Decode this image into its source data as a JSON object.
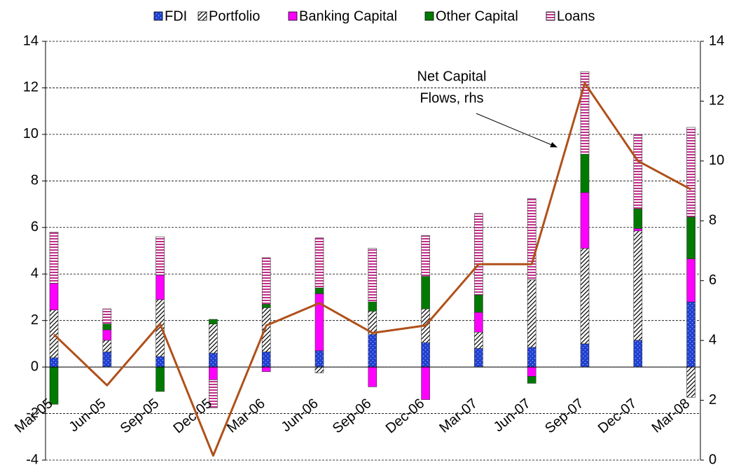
{
  "chart_data": {
    "type": "bar",
    "stacked": true,
    "categories": [
      "Mar-05",
      "Jun-05",
      "Sep-05",
      "Dec-05",
      "Mar-06",
      "Jun-06",
      "Sep-06",
      "Dec-06",
      "Mar-07",
      "Jun-07",
      "Sep-07",
      "Dec-07",
      "Mar-08"
    ],
    "series": [
      {
        "name": "FDI",
        "color": "#1f3fd0",
        "pattern": "dots",
        "values": [
          0.4,
          0.65,
          0.45,
          0.6,
          0.65,
          0.7,
          1.4,
          1.05,
          0.8,
          0.85,
          1.0,
          1.15,
          2.8
        ]
      },
      {
        "name": "Portfolio",
        "color": "#000000",
        "pattern": "hatch",
        "values": [
          2.05,
          0.5,
          2.45,
          1.25,
          1.9,
          -0.25,
          1.0,
          1.45,
          0.7,
          2.9,
          4.1,
          4.7,
          -1.3
        ]
      },
      {
        "name": "Banking Capital",
        "color": "#ff00ff",
        "pattern": "solid",
        "values": [
          1.15,
          0.45,
          1.05,
          -0.55,
          -0.2,
          2.45,
          -0.85,
          -1.4,
          0.85,
          -0.4,
          2.4,
          0.1,
          1.85
        ]
      },
      {
        "name": "Other Capital",
        "color": "#007a00",
        "pattern": "solid",
        "values": [
          -1.6,
          0.25,
          -1.05,
          0.2,
          0.15,
          0.25,
          0.4,
          1.4,
          0.75,
          -0.3,
          1.65,
          0.85,
          1.8
        ]
      },
      {
        "name": "Loans",
        "color": "#c0308a",
        "pattern": "stripes",
        "values": [
          2.2,
          0.65,
          1.65,
          -1.2,
          2.0,
          2.15,
          2.3,
          1.75,
          3.5,
          3.5,
          3.55,
          3.2,
          3.85
        ]
      }
    ],
    "line": {
      "color": "#b0501a",
      "axis": "y2",
      "values": [
        4.2,
        2.5,
        4.55,
        0.15,
        4.5,
        5.25,
        4.25,
        4.5,
        6.55,
        6.55,
        12.6,
        10.0,
        9.05
      ]
    },
    "annotation": [
      "Net Capital",
      "Flows, rhs"
    ],
    "ylim": [
      -4,
      14
    ],
    "yticks": [
      -4,
      -2,
      0,
      2,
      4,
      6,
      8,
      10,
      12,
      14
    ],
    "y2lim": [
      0,
      14
    ],
    "y2ticks": [
      0,
      2,
      4,
      6,
      8,
      10,
      12,
      14
    ],
    "grid": true,
    "legend": "top"
  }
}
